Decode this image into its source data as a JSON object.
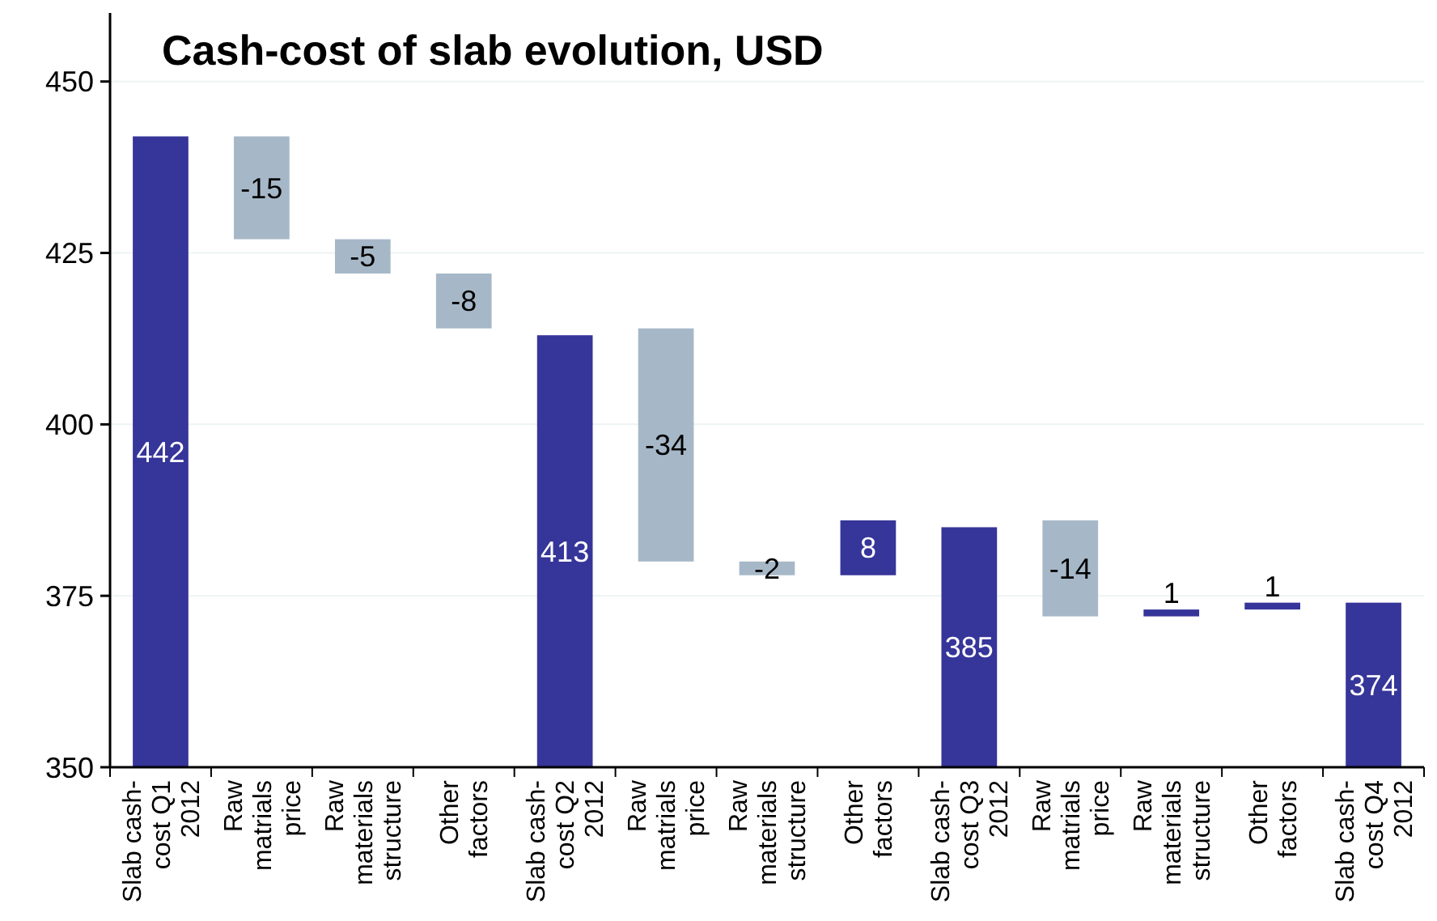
{
  "chart_data": {
    "type": "bar",
    "title": "Cash-cost of slab evolution, USD",
    "categories": [
      "Slab cash-cost Q1 2012",
      "Raw matrials price",
      "Raw materials structure",
      "Other factors",
      "Slab cash-cost Q2 2012",
      "Raw matrials price",
      "Raw materials structure",
      "Other factors",
      "Slab cash-cost Q3 2012",
      "Raw matrials price",
      "Raw materials structure",
      "Other factors",
      "Slab cash-cost Q4 2012"
    ],
    "values": [
      442,
      -15,
      -5,
      -8,
      413,
      -34,
      -2,
      8,
      385,
      -14,
      1,
      1,
      374
    ],
    "base": [
      null,
      442,
      427,
      422,
      null,
      414,
      380,
      378,
      null,
      386,
      372,
      373,
      null
    ],
    "colors": [
      "#363599",
      "#a6b8c8",
      "#a6b8c8",
      "#a6b8c8",
      "#363599",
      "#a6b8c8",
      "#a6b8c8",
      "#363599",
      "#363599",
      "#a6b8c8",
      "#363599",
      "#363599",
      "#363599"
    ],
    "data_labels": true,
    "ylim": [
      350,
      460
    ],
    "yticks": [
      350,
      375,
      400,
      425,
      450
    ],
    "grid": "y"
  }
}
